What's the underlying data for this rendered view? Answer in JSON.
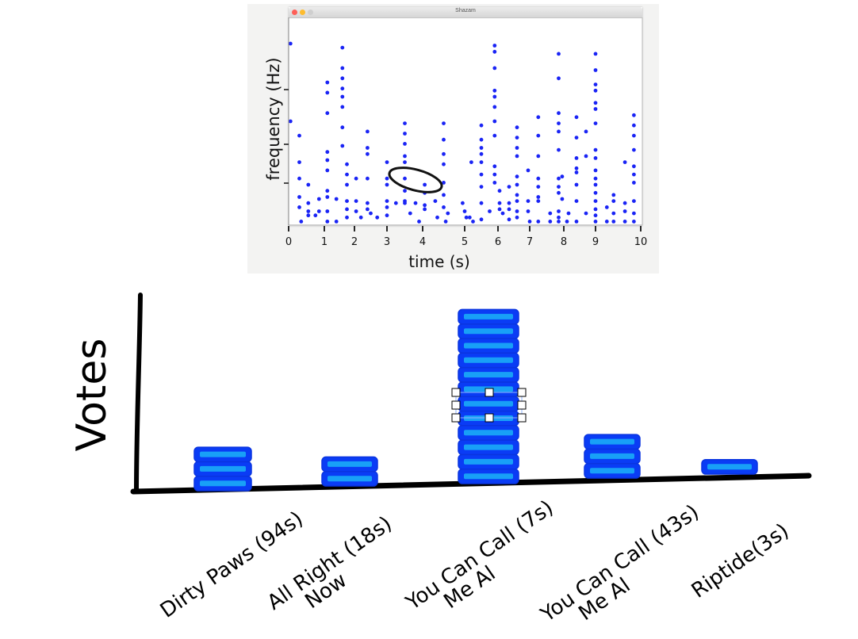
{
  "top_figure": {
    "window_title": "Shazam",
    "traffic_lights": {
      "close": "#fe5f57",
      "minimize": "#febc2e",
      "zoom": "#cfcfcf"
    },
    "ylabel": "frequency (Hz)",
    "xlabel": "time (s)",
    "xticks": [
      "0",
      "1",
      "2",
      "3",
      "4",
      "5",
      "6",
      "7",
      "8",
      "9",
      "10"
    ],
    "dot_color": "#1a24f5",
    "annotation": "hand-drawn ellipse around a pair of points near t=3.5–4.2s"
  },
  "bottom_figure": {
    "ylabel": "Votes",
    "bar_fill": "#0a3cf5",
    "bar_stripe": "#18a0f7",
    "selection": "one block in the 'You Can Call Me Al (7s)' stack is selected with 8 resize handles"
  },
  "chart_data": [
    {
      "type": "scatter",
      "title": "Shazam",
      "xlabel": "time (s)",
      "ylabel": "frequency (Hz)",
      "xlim": [
        0,
        10
      ],
      "xticks": [
        0,
        1,
        2,
        3,
        4,
        5,
        6,
        7,
        8,
        9,
        10
      ],
      "yticks": [],
      "grid": false,
      "note": "Spectrogram constellation peaks; y-values are relative (0 = bottom axis, 1 = top of plot). Points approximated.",
      "points": [
        [
          0.05,
          0.88
        ],
        [
          0.05,
          0.5
        ],
        [
          0.3,
          0.43
        ],
        [
          0.3,
          0.3
        ],
        [
          0.3,
          0.22
        ],
        [
          0.3,
          0.13
        ],
        [
          0.3,
          0.08
        ],
        [
          0.35,
          0.01
        ],
        [
          0.55,
          0.19
        ],
        [
          0.55,
          0.1
        ],
        [
          0.55,
          0.06
        ],
        [
          0.55,
          0.04
        ],
        [
          0.75,
          0.04
        ],
        [
          0.85,
          0.12
        ],
        [
          0.85,
          0.06
        ],
        [
          1.1,
          0.69
        ],
        [
          1.1,
          0.64
        ],
        [
          1.1,
          0.54
        ],
        [
          1.1,
          0.35
        ],
        [
          1.1,
          0.31
        ],
        [
          1.1,
          0.26
        ],
        [
          1.1,
          0.16
        ],
        [
          1.1,
          0.13
        ],
        [
          1.1,
          0.06
        ],
        [
          1.1,
          0.01
        ],
        [
          1.4,
          0.12
        ],
        [
          1.4,
          0.01
        ],
        [
          1.6,
          0.86
        ],
        [
          1.6,
          0.76
        ],
        [
          1.6,
          0.71
        ],
        [
          1.6,
          0.66
        ],
        [
          1.6,
          0.62
        ],
        [
          1.6,
          0.57
        ],
        [
          1.6,
          0.47
        ],
        [
          1.6,
          0.38
        ],
        [
          1.75,
          0.29
        ],
        [
          1.75,
          0.24
        ],
        [
          1.75,
          0.19
        ],
        [
          1.75,
          0.11
        ],
        [
          1.75,
          0.07
        ],
        [
          1.75,
          0.03
        ],
        [
          2.05,
          0.22
        ],
        [
          2.05,
          0.11
        ],
        [
          2.05,
          0.06
        ],
        [
          2.2,
          0.03
        ],
        [
          2.4,
          0.45
        ],
        [
          2.4,
          0.37
        ],
        [
          2.4,
          0.34
        ],
        [
          2.4,
          0.22
        ],
        [
          2.4,
          0.1
        ],
        [
          2.4,
          0.07
        ],
        [
          2.5,
          0.05
        ],
        [
          2.7,
          0.03
        ],
        [
          3.0,
          0.3
        ],
        [
          3.0,
          0.22
        ],
        [
          3.0,
          0.19
        ],
        [
          3.0,
          0.11
        ],
        [
          3.0,
          0.08
        ],
        [
          3.0,
          0.04
        ],
        [
          3.25,
          0.1
        ],
        [
          3.5,
          0.49
        ],
        [
          3.5,
          0.44
        ],
        [
          3.5,
          0.39
        ],
        [
          3.5,
          0.33
        ],
        [
          3.5,
          0.3
        ],
        [
          3.5,
          0.22
        ],
        [
          3.5,
          0.16
        ],
        [
          3.5,
          0.11
        ],
        [
          3.5,
          0.1
        ],
        [
          3.65,
          0.05
        ],
        [
          3.8,
          0.1
        ],
        [
          3.9,
          0.01
        ],
        [
          4.05,
          0.19
        ],
        [
          4.05,
          0.15
        ],
        [
          4.05,
          0.09
        ],
        [
          4.05,
          0.07
        ],
        [
          4.3,
          0.11
        ],
        [
          4.35,
          0.03
        ],
        [
          4.5,
          0.49
        ],
        [
          4.5,
          0.41
        ],
        [
          4.5,
          0.34
        ],
        [
          4.5,
          0.29
        ],
        [
          4.5,
          0.2
        ],
        [
          4.5,
          0.14
        ],
        [
          4.5,
          0.08
        ],
        [
          4.6,
          0.05
        ],
        [
          4.55,
          0.01
        ],
        [
          4.95,
          0.1
        ],
        [
          5.0,
          0.06
        ],
        [
          5.05,
          0.03
        ],
        [
          5.15,
          0.03
        ],
        [
          5.2,
          0.3
        ],
        [
          5.25,
          0.01
        ],
        [
          5.5,
          0.48
        ],
        [
          5.5,
          0.41
        ],
        [
          5.5,
          0.37
        ],
        [
          5.5,
          0.34
        ],
        [
          5.5,
          0.3
        ],
        [
          5.5,
          0.24
        ],
        [
          5.5,
          0.18
        ],
        [
          5.5,
          0.1
        ],
        [
          5.5,
          0.02
        ],
        [
          5.75,
          0.06
        ],
        [
          5.9,
          0.87
        ],
        [
          5.9,
          0.84
        ],
        [
          5.9,
          0.76
        ],
        [
          5.9,
          0.65
        ],
        [
          5.9,
          0.62
        ],
        [
          5.9,
          0.57
        ],
        [
          5.9,
          0.5
        ],
        [
          5.9,
          0.43
        ],
        [
          5.9,
          0.28
        ],
        [
          5.9,
          0.24
        ],
        [
          5.9,
          0.2
        ],
        [
          6.05,
          0.16
        ],
        [
          6.05,
          0.1
        ],
        [
          6.05,
          0.07
        ],
        [
          6.15,
          0.05
        ],
        [
          6.35,
          0.18
        ],
        [
          6.35,
          0.1
        ],
        [
          6.35,
          0.07
        ],
        [
          6.35,
          0.02
        ],
        [
          6.6,
          0.47
        ],
        [
          6.6,
          0.42
        ],
        [
          6.6,
          0.37
        ],
        [
          6.6,
          0.33
        ],
        [
          6.6,
          0.23
        ],
        [
          6.6,
          0.19
        ],
        [
          6.6,
          0.14
        ],
        [
          6.6,
          0.11
        ],
        [
          6.6,
          0.06
        ],
        [
          6.6,
          0.03
        ],
        [
          6.95,
          0.26
        ],
        [
          6.95,
          0.11
        ],
        [
          6.95,
          0.06
        ],
        [
          7.0,
          0.01
        ],
        [
          7.25,
          0.52
        ],
        [
          7.25,
          0.43
        ],
        [
          7.25,
          0.33
        ],
        [
          7.25,
          0.22
        ],
        [
          7.25,
          0.18
        ],
        [
          7.25,
          0.13
        ],
        [
          7.25,
          0.11
        ],
        [
          7.25,
          0.01
        ],
        [
          7.6,
          0.05
        ],
        [
          7.6,
          0.01
        ],
        [
          7.85,
          0.83
        ],
        [
          7.85,
          0.71
        ],
        [
          7.85,
          0.54
        ],
        [
          7.85,
          0.49
        ],
        [
          7.85,
          0.45
        ],
        [
          7.85,
          0.36
        ],
        [
          7.85,
          0.22
        ],
        [
          7.85,
          0.18
        ],
        [
          7.85,
          0.15
        ],
        [
          7.85,
          0.06
        ],
        [
          7.85,
          0.03
        ],
        [
          7.85,
          0.01
        ],
        [
          7.95,
          0.23
        ],
        [
          7.95,
          0.12
        ],
        [
          8.1,
          0.01
        ],
        [
          8.15,
          0.05
        ],
        [
          8.4,
          0.52
        ],
        [
          8.4,
          0.42
        ],
        [
          8.4,
          0.32
        ],
        [
          8.4,
          0.27
        ],
        [
          8.4,
          0.25
        ],
        [
          8.4,
          0.19
        ],
        [
          8.4,
          0.11
        ],
        [
          8.4,
          0.01
        ],
        [
          8.7,
          0.45
        ],
        [
          8.7,
          0.33
        ],
        [
          8.7,
          0.05
        ],
        [
          9.0,
          0.83
        ],
        [
          9.0,
          0.75
        ],
        [
          9.0,
          0.68
        ],
        [
          9.0,
          0.65
        ],
        [
          9.0,
          0.59
        ],
        [
          9.0,
          0.56
        ],
        [
          9.0,
          0.49
        ],
        [
          9.0,
          0.36
        ],
        [
          9.0,
          0.32
        ],
        [
          9.0,
          0.26
        ],
        [
          9.0,
          0.22
        ],
        [
          9.0,
          0.19
        ],
        [
          9.0,
          0.15
        ],
        [
          9.0,
          0.11
        ],
        [
          9.0,
          0.07
        ],
        [
          9.0,
          0.04
        ],
        [
          9.0,
          0.01
        ],
        [
          9.25,
          0.08
        ],
        [
          9.25,
          0.01
        ],
        [
          9.4,
          0.14
        ],
        [
          9.4,
          0.11
        ],
        [
          9.4,
          0.05
        ],
        [
          9.4,
          0.01
        ],
        [
          9.65,
          0.3
        ],
        [
          9.65,
          0.1
        ],
        [
          9.65,
          0.06
        ],
        [
          9.65,
          0.01
        ],
        [
          9.85,
          0.53
        ],
        [
          9.85,
          0.48
        ],
        [
          9.85,
          0.43
        ],
        [
          9.85,
          0.36
        ],
        [
          9.85,
          0.28
        ],
        [
          9.85,
          0.24
        ],
        [
          9.85,
          0.2
        ],
        [
          9.85,
          0.11
        ],
        [
          9.85,
          0.05
        ],
        [
          9.85,
          0.01
        ]
      ],
      "annotations": [
        {
          "type": "ellipse",
          "cx": 3.9,
          "cy": 0.24,
          "label": ""
        }
      ]
    },
    {
      "type": "bar",
      "title": "",
      "xlabel": "",
      "ylabel": "Votes",
      "categories": [
        "Dirty Paws (94s)",
        "All Right Now (18s)",
        "You Can Call Me Al (7s)",
        "You Can Call Me Al (43s)",
        "Riptide (3s)"
      ],
      "category_lines": [
        [
          "Dirty Paws (94s)"
        ],
        [
          "All Right (18s)",
          "Now"
        ],
        [
          "You Can Call (7s)",
          "Me Al"
        ],
        [
          "You Can Call (43s)",
          "Me Al"
        ],
        [
          "Riptide(3s)"
        ]
      ],
      "values": [
        3,
        2,
        12,
        3,
        1
      ],
      "ylim": [
        0,
        14
      ],
      "grid": false,
      "legend": null,
      "style": "hand-drawn stacked blocks, one block per vote"
    }
  ]
}
